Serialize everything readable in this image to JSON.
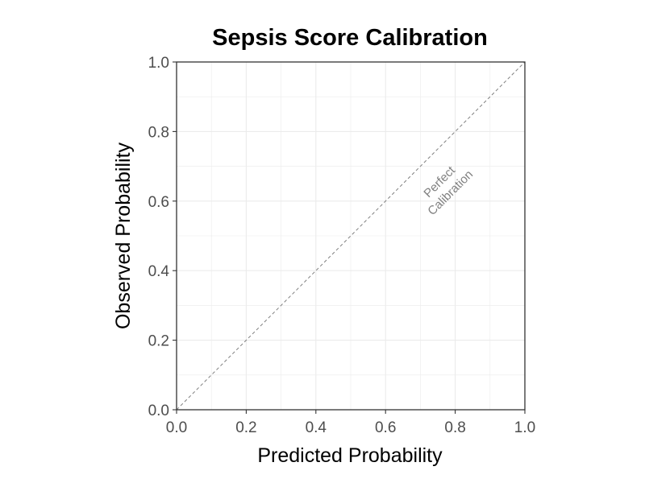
{
  "chart_data": {
    "type": "line",
    "title": "Sepsis Score Calibration",
    "xlabel": "Predicted Probability",
    "ylabel": "Observed Probability",
    "xlim": [
      0,
      1
    ],
    "ylim": [
      0,
      1
    ],
    "x_ticks": [
      "0.0",
      "0.2",
      "0.4",
      "0.6",
      "0.8",
      "1.0"
    ],
    "y_ticks": [
      "0.0",
      "0.2",
      "0.4",
      "0.6",
      "0.8",
      "1.0"
    ],
    "grid": true,
    "series": [
      {
        "x": [
          0,
          1
        ],
        "y": [
          0,
          1
        ],
        "style": "dashed",
        "color": "#808080"
      }
    ],
    "annotations": [
      {
        "lines": [
          "Perfect",
          "Calibration"
        ],
        "x": 0.77,
        "y": 0.64,
        "rotation_deg": -45
      }
    ],
    "colors": {
      "grid": "#ebebeb",
      "axis": "#333333",
      "reference_line": "#808080",
      "annotation": "#808080"
    }
  }
}
